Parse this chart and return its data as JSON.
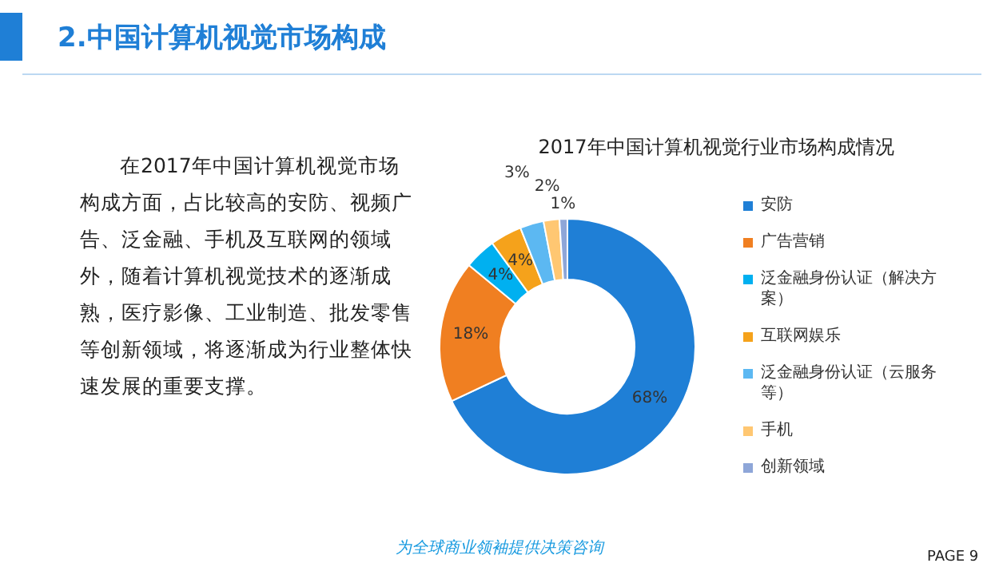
{
  "chart_data": {
    "type": "donut",
    "title": "2017年中国计算机视觉行业市场构成情况",
    "categories": [
      "安防",
      "广告营销",
      "泛金融身份认证（解决方案）",
      "互联网娱乐",
      "泛金融身份认证（云服务等）",
      "手机",
      "创新领域"
    ],
    "values": [
      68,
      18,
      4,
      4,
      3,
      2,
      1
    ],
    "value_labels": [
      "68%",
      "18%",
      "4%",
      "4%",
      "3%",
      "2%",
      "1%"
    ],
    "colors": [
      "#1f7fd6",
      "#f07f21",
      "#00b0f0",
      "#f5a21b",
      "#5cb8f2",
      "#ffc772",
      "#8ea6d8"
    ],
    "legend": "right",
    "annotations": [
      "2.中国计算机视觉市场构成",
      "在2017年中国计算机视觉市场构成方面，占比较高的安防、视频广告、泛金融、手机及互联网的领域外，随着计算机视觉技术的逐渐成熟，医疗影像、工业制造、批发零售等创新领域，将逐渐成为行业整体快速发展的重要支撑。",
      "为全球商业领袖提供决策咨询",
      "PAGE 9"
    ]
  }
}
